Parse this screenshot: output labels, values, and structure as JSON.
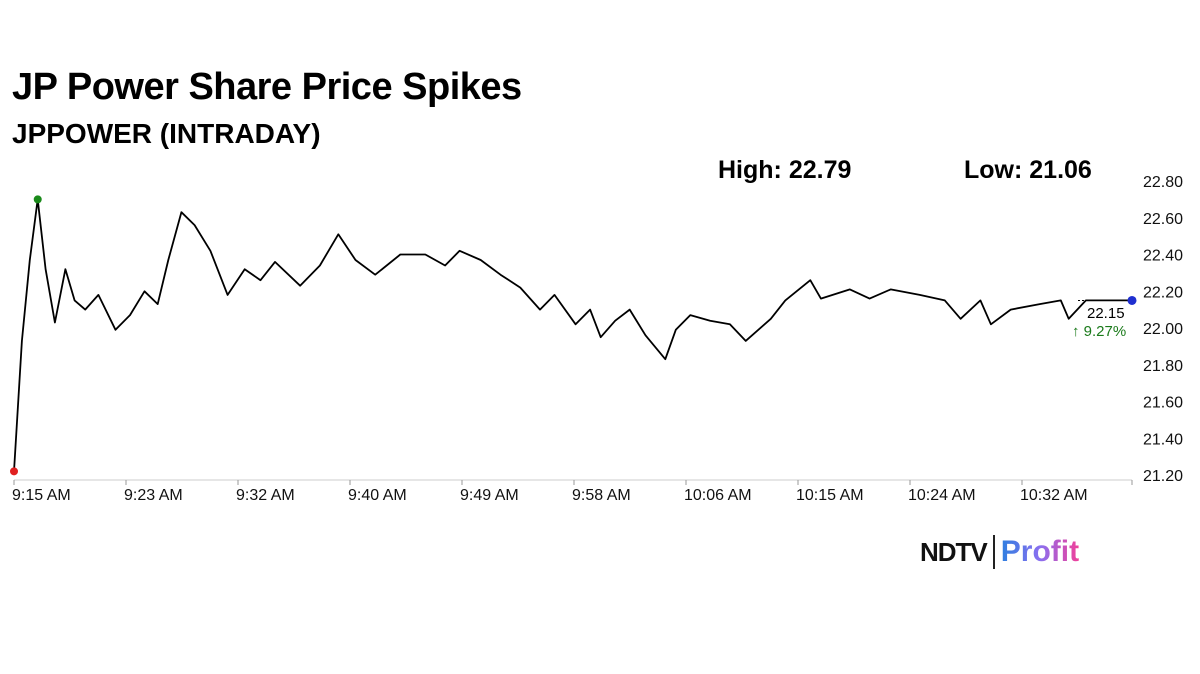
{
  "chart_data": {
    "type": "line",
    "title": "JP Power Share Price Spikes",
    "subtitle": "JPPOWER (INTRADAY)",
    "high_label": "High: 22.79",
    "low_label": "Low: 21.06",
    "xlabel": "",
    "ylabel": "",
    "ylim": [
      21.2,
      22.8
    ],
    "yticks": [
      "22.80",
      "22.60",
      "22.40",
      "22.20",
      "22.00",
      "21.80",
      "21.60",
      "21.40",
      "21.20"
    ],
    "xtick_labels": [
      "9:15 AM",
      "9:23 AM",
      "9:32 AM",
      "9:40 AM",
      "9:49 AM",
      "9:58 AM",
      "10:06 AM",
      "10:15 AM",
      "10:24 AM",
      "10:32 AM"
    ],
    "x_unit": "minutes since 9:15 AM",
    "xlim": [
      0,
      84.8
    ],
    "x": [
      0,
      0.6,
      1.2,
      1.8,
      2.4,
      3.1,
      3.9,
      4.6,
      5.4,
      6.4,
      7.7,
      8.8,
      9.9,
      10.9,
      11.7,
      12.7,
      13.7,
      14.9,
      16.2,
      17.5,
      18.7,
      19.8,
      21.7,
      23.2,
      24.6,
      25.9,
      27.4,
      29.3,
      31.2,
      32.7,
      33.8,
      35.4,
      36.9,
      38.4,
      39.9,
      41.0,
      42.6,
      43.7,
      44.5,
      45.6,
      46.7,
      47.9,
      49.4,
      50.2,
      51.3,
      52.8,
      54.3,
      55.5,
      57.4,
      58.5,
      60.4,
      61.2,
      63.4,
      64.9,
      66.5,
      68.7,
      70.6,
      71.8,
      73.3,
      74.1,
      75.6,
      77.8,
      79.4,
      80.0,
      81.3,
      84.8
    ],
    "values": [
      21.22,
      21.93,
      22.37,
      22.7,
      22.32,
      22.03,
      22.32,
      22.15,
      22.1,
      22.18,
      21.99,
      22.07,
      22.2,
      22.13,
      22.37,
      22.63,
      22.56,
      22.42,
      22.18,
      22.32,
      22.26,
      22.36,
      22.23,
      22.34,
      22.51,
      22.37,
      22.29,
      22.4,
      22.4,
      22.34,
      22.42,
      22.37,
      22.29,
      22.22,
      22.1,
      22.18,
      22.02,
      22.1,
      21.95,
      22.04,
      22.1,
      21.96,
      21.83,
      21.99,
      22.07,
      22.04,
      22.02,
      21.93,
      22.05,
      22.15,
      22.26,
      22.16,
      22.21,
      22.16,
      22.21,
      22.18,
      22.15,
      22.05,
      22.15,
      22.02,
      22.1,
      22.13,
      22.15,
      22.05,
      22.15,
      22.15
    ],
    "last_value_label": "22.15",
    "change_label": "↑ 9.27%",
    "colors": {
      "line": "#000000",
      "start": "#e02020",
      "high": "#1a8a1a",
      "end": "#1f2fd0",
      "change": "#1a7a1a"
    }
  },
  "brand": {
    "ndtv": "NDTV",
    "profit": "Profit"
  }
}
